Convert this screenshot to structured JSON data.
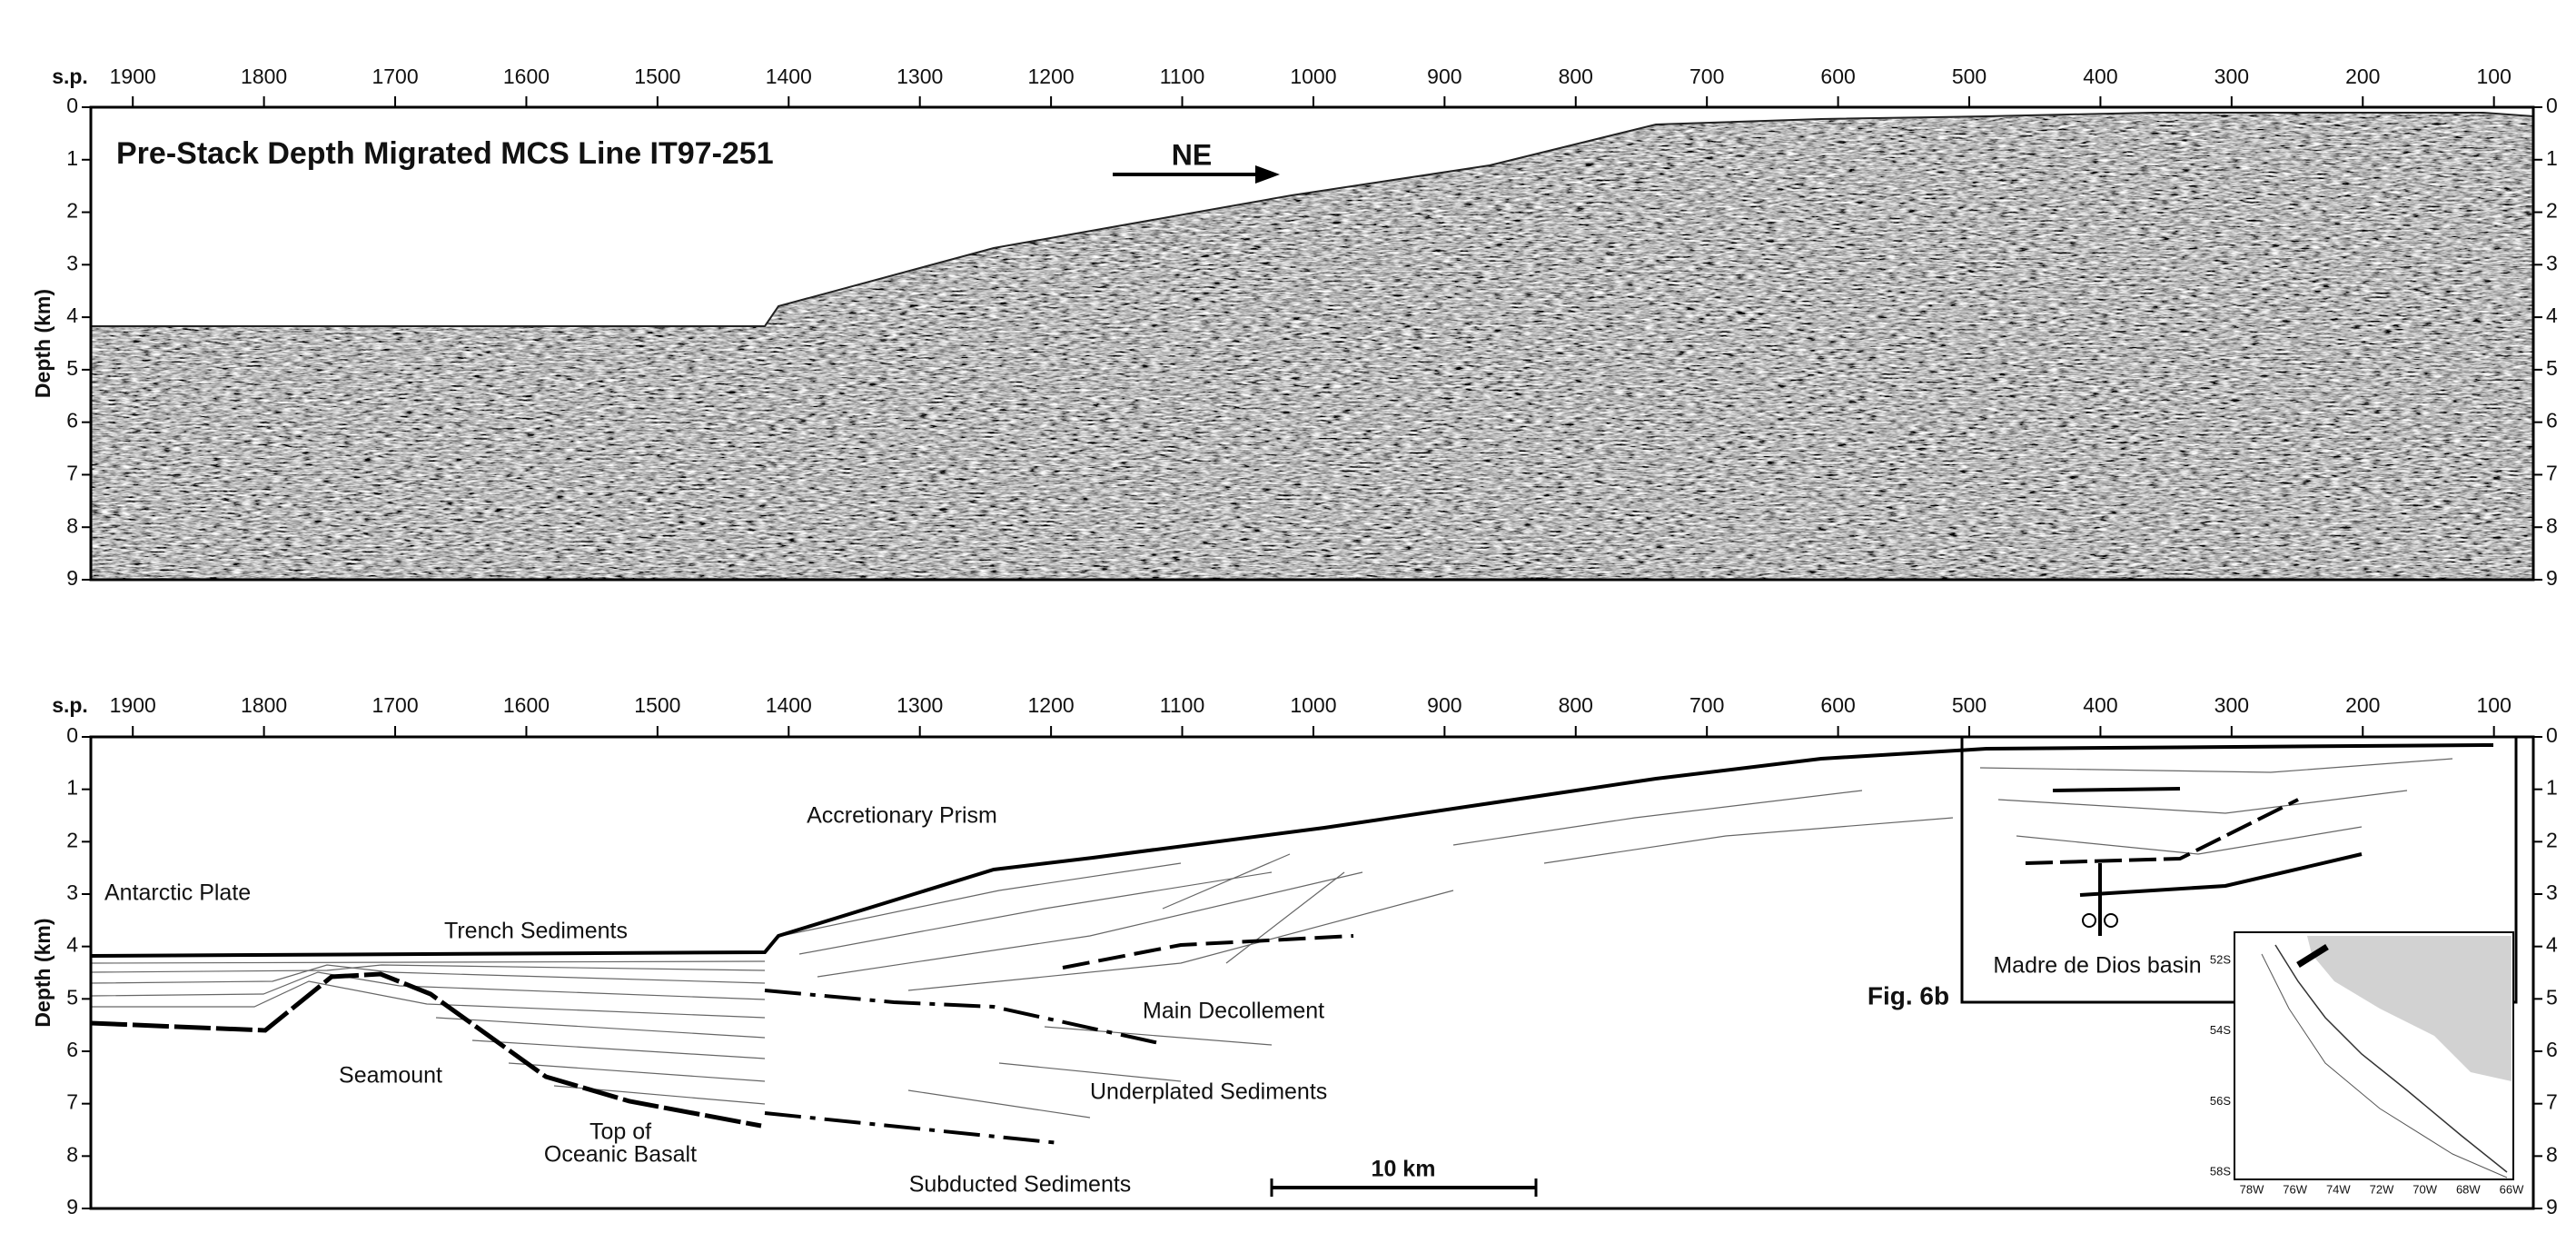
{
  "panels": [
    {
      "title": "Pre-Stack Depth Migrated MCS Line IT97-251",
      "direction": "NE",
      "x_axis": {
        "label": "s.p.",
        "lim": [
          1932,
          70
        ],
        "ticks": [
          1900,
          1800,
          1700,
          1600,
          1500,
          1400,
          1300,
          1200,
          1100,
          1000,
          900,
          800,
          700,
          600,
          500,
          400,
          300,
          200,
          100
        ]
      },
      "y_axis": {
        "label": "Depth (km)",
        "lim": [
          0,
          9
        ],
        "ticks": [
          0,
          1,
          2,
          3,
          4,
          5,
          6,
          7,
          8,
          9
        ]
      }
    },
    {
      "x_axis": {
        "label": "s.p.",
        "lim": [
          1932,
          70
        ],
        "ticks": [
          1900,
          1800,
          1700,
          1600,
          1500,
          1400,
          1300,
          1200,
          1100,
          1000,
          900,
          800,
          700,
          600,
          500,
          400,
          300,
          200,
          100
        ]
      },
      "y_axis": {
        "label": "Depth (km)",
        "lim": [
          0,
          9
        ],
        "ticks": [
          0,
          1,
          2,
          3,
          4,
          5,
          6,
          7,
          8,
          9
        ]
      },
      "labels": {
        "accretionary_prism": "Accretionary Prism",
        "antarctic_plate": "Antarctic Plate",
        "trench_sediments": "Trench Sediments",
        "main_decollement": "Main Decollement",
        "seamount": "Seamount",
        "underplated_sediments": "Underplated Sediments",
        "top_of": "Top of",
        "oceanic_basalt": "Oceanic Basalt",
        "subducted_sediments": "Subducted Sediments",
        "scale_bar": "10 km",
        "figure_ref": "Fig. 6b",
        "basin": "Madre de Dios basin"
      }
    }
  ],
  "inset": {
    "lat_ticks": [
      "52S",
      "54S",
      "56S",
      "58S"
    ],
    "lon_ticks": [
      "78W",
      "76W",
      "74W",
      "72W",
      "70W",
      "68W",
      "66W"
    ]
  }
}
